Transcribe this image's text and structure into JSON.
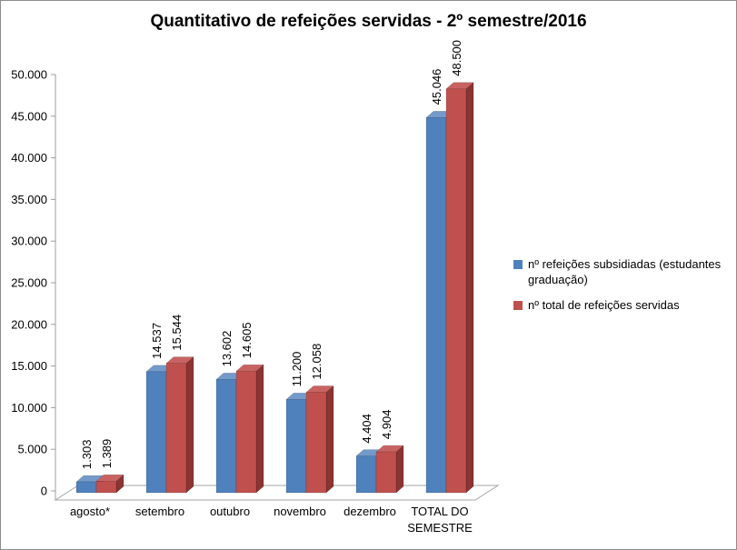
{
  "frame": {
    "border_color": "#8C8C8C",
    "background": "#FFFFFF"
  },
  "chart_data": {
    "type": "bar",
    "style": "3d-clustered-column",
    "title": "Quantitativo de refeições servidas - 2º semestre/2016",
    "categories": [
      "agosto*",
      "setembro",
      "outubro",
      "novembro",
      "dezembro",
      "TOTAL DO\nSEMESTRE"
    ],
    "series": [
      {
        "name": "nº refeições subsidiadas (estudantes graduação)",
        "name_lines": [
          "nº refeições subsidiadas (estudantes",
          "graduação)"
        ],
        "color": "#4F81BD",
        "color_top": "#729ACA",
        "color_side": "#38618E",
        "values": [
          1303,
          14537,
          13602,
          11200,
          4404,
          45046
        ],
        "labels": [
          "1.303",
          "14.537",
          "13.602",
          "11.200",
          "4.404",
          "45.046"
        ]
      },
      {
        "name": "nº total de refeições servidas",
        "name_lines": [
          "nº total de refeições servidas",
          ""
        ],
        "color": "#C0504D",
        "color_top": "#C96361",
        "color_side": "#8B3432",
        "values": [
          1389,
          15544,
          14605,
          12058,
          4904,
          48500
        ],
        "labels": [
          "1.389",
          "15.544",
          "14.605",
          "12.058",
          "4.904",
          "48.500"
        ]
      }
    ],
    "xlabel": "",
    "ylabel": "",
    "ylim": [
      0,
      50000
    ],
    "ytick_step": 5000,
    "ytick_labels": [
      "0",
      "5.000",
      "10.000",
      "15.000",
      "20.000",
      "25.000",
      "30.000",
      "35.000",
      "40.000",
      "45.000",
      "50.000"
    ],
    "grid": false,
    "legend_position": "right",
    "axis_color": "#9C9C9C",
    "floor_edge_color": "#A6A6A6",
    "data_label_rotation": -90
  }
}
